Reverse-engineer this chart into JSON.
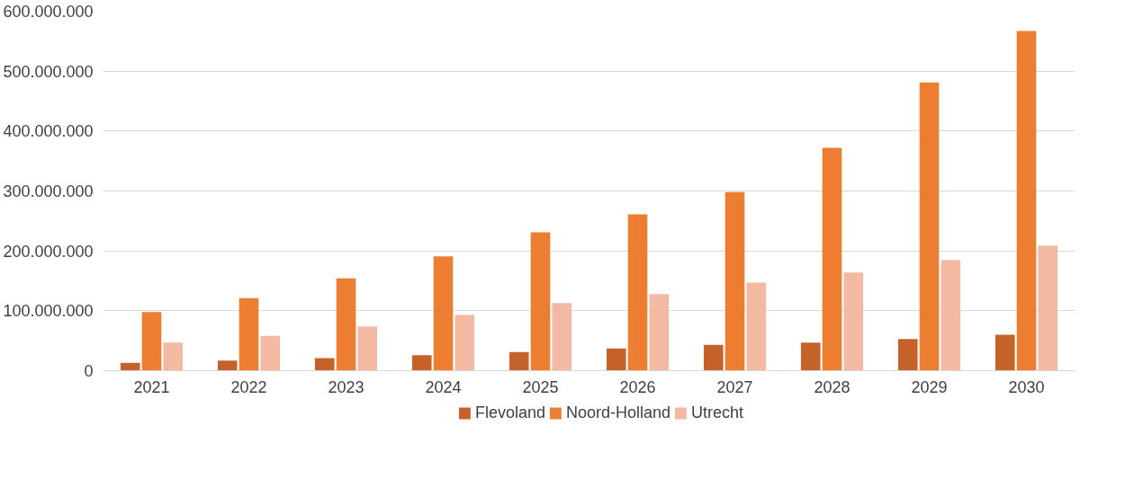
{
  "chart_data": {
    "type": "bar",
    "categories": [
      "2021",
      "2022",
      "2023",
      "2024",
      "2025",
      "2026",
      "2027",
      "2028",
      "2029",
      "2030"
    ],
    "series": [
      {
        "name": "Flevoland",
        "color": "#c5622a",
        "values": [
          13000000,
          17000000,
          21000000,
          26000000,
          31000000,
          37000000,
          43000000,
          47000000,
          53000000,
          60000000
        ]
      },
      {
        "name": "Noord-Holland",
        "color": "#ed7d31",
        "values": [
          98000000,
          121000000,
          154000000,
          191000000,
          231000000,
          261000000,
          298000000,
          372000000,
          481000000,
          567000000
        ]
      },
      {
        "name": "Utrecht",
        "color": "#f4b9a2",
        "values": [
          47000000,
          58000000,
          74000000,
          93000000,
          113000000,
          128000000,
          147000000,
          164000000,
          185000000,
          209000000
        ]
      }
    ],
    "ylim": [
      0,
      600000000
    ],
    "yticks": [
      {
        "value": 0,
        "label": "0"
      },
      {
        "value": 100000000,
        "label": "100.000.000"
      },
      {
        "value": 200000000,
        "label": "200.000.000"
      },
      {
        "value": 300000000,
        "label": "300.000.000"
      },
      {
        "value": 400000000,
        "label": "400.000.000"
      },
      {
        "value": 500000000,
        "label": "500.000.000"
      },
      {
        "value": 600000000,
        "label": "600.000.000"
      }
    ],
    "grid": "y",
    "legend": "bottom"
  }
}
